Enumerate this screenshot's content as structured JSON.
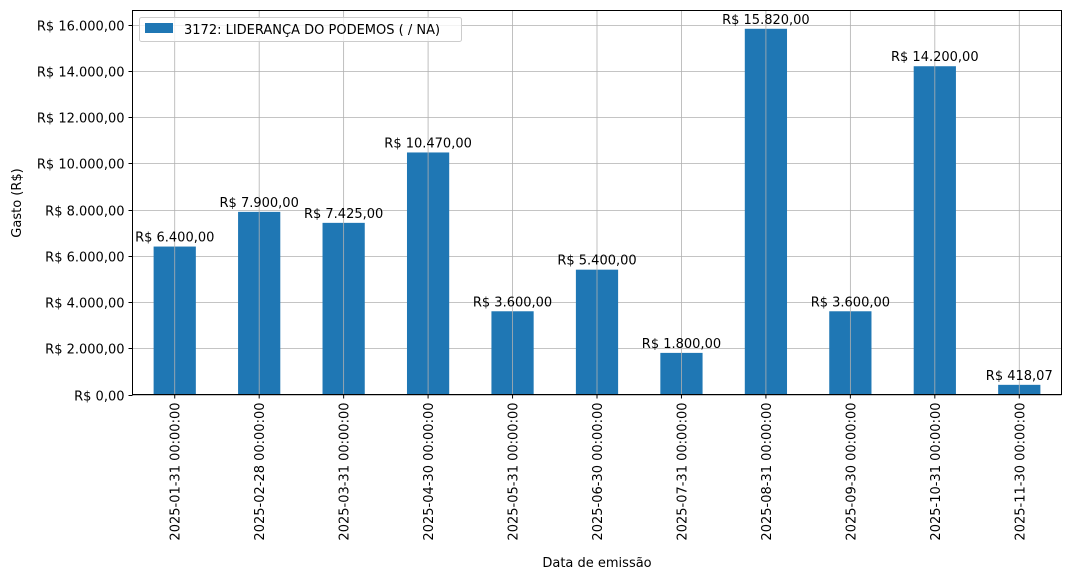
{
  "chart_data": {
    "type": "bar",
    "title": "",
    "xlabel": "Data de emissão",
    "ylabel": "Gasto (R$)",
    "ylim": [
      0,
      16611
    ],
    "grid": true,
    "legend_position": "top-left",
    "bar_color": "#1f77b4",
    "categories": [
      "2025-01-31 00:00:00",
      "2025-02-28 00:00:00",
      "2025-03-31 00:00:00",
      "2025-04-30 00:00:00",
      "2025-05-31 00:00:00",
      "2025-06-30 00:00:00",
      "2025-07-31 00:00:00",
      "2025-08-31 00:00:00",
      "2025-09-30 00:00:00",
      "2025-10-31 00:00:00",
      "2025-11-30 00:00:00"
    ],
    "series": [
      {
        "name": "3172: LIDERANÇA DO PODEMOS ( / NA)",
        "values": [
          6400,
          7900,
          7425,
          10470,
          3600,
          5400,
          1800,
          15820,
          3600,
          14200,
          418.07
        ],
        "data_labels": [
          "R$ 6.400,00",
          "R$ 7.900,00",
          "R$ 7.425,00",
          "R$ 10.470,00",
          "R$ 3.600,00",
          "R$ 5.400,00",
          "R$ 1.800,00",
          "R$ 15.820,00",
          "R$ 3.600,00",
          "R$ 14.200,00",
          "R$ 418,07"
        ]
      }
    ],
    "yticks": [
      0,
      2000,
      4000,
      6000,
      8000,
      10000,
      12000,
      14000,
      16000
    ],
    "ytick_labels": [
      "R$ 0,00",
      "R$ 2.000,00",
      "R$ 4.000,00",
      "R$ 6.000,00",
      "R$ 8.000,00",
      "R$ 10.000,00",
      "R$ 12.000,00",
      "R$ 14.000,00",
      "R$ 16.000,00"
    ]
  }
}
